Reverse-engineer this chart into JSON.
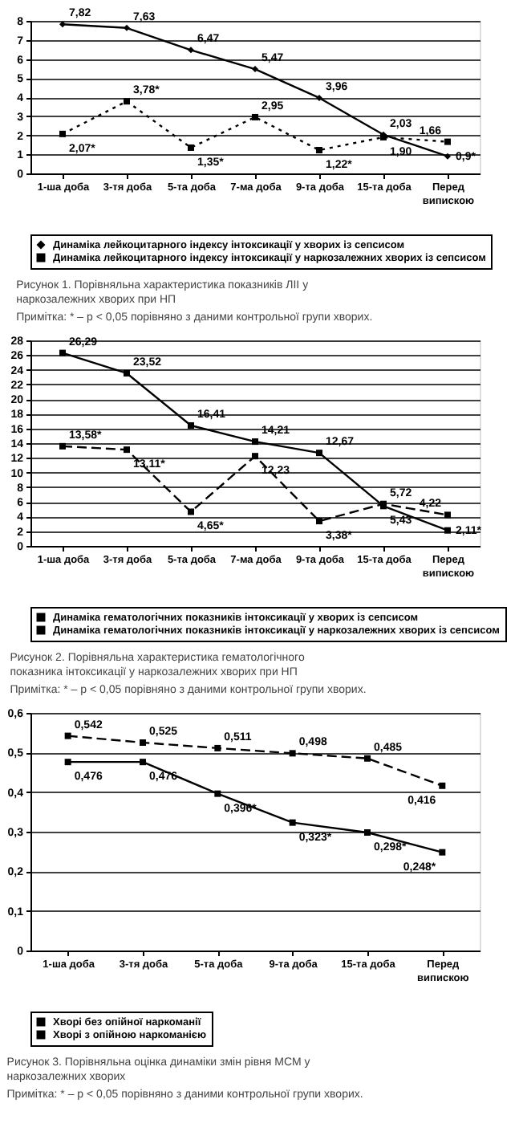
{
  "chart_data": [
    {
      "type": "line",
      "title": "Рисунок 1. Порівняльна характеристика показників ЛІІ у наркозалежних хворих при НП",
      "annotations": [
        "Примітка: * – p < 0,05 порівняно з даними контрольної групи хворих."
      ],
      "categories": [
        "1-ша доба",
        "3-тя доба",
        "5-та доба",
        "7-ма доба",
        "9-та доба",
        "15-та доба",
        "Перед випискою"
      ],
      "ylim": [
        0,
        8
      ],
      "yticks": [
        0,
        1,
        2,
        3,
        4,
        5,
        6,
        7,
        8
      ],
      "grid": "y",
      "legend": "bottom",
      "series": [
        {
          "name": "Динаміка лейкоцитарного індексу інтоксикації у хворих із сепсисом",
          "color": "#000000",
          "marker": "diamond",
          "line_style": "solid",
          "values": [
            7.82,
            7.63,
            6.47,
            5.47,
            3.96,
            2.03,
            0.9
          ],
          "value_labels": [
            "7,82",
            "7,63",
            "6,47",
            "5,47",
            "3,96",
            "2,03",
            "0,9*"
          ]
        },
        {
          "name": "Динаміка лейкоцитарного індексу інтоксикації у наркозалежних хворих із сепсисом",
          "color": "#000000",
          "marker": "square",
          "line_style": "dotted",
          "values": [
            2.07,
            3.78,
            1.35,
            2.95,
            1.22,
            1.9,
            1.66
          ],
          "value_labels": [
            "2,07*",
            "3,78*",
            "1,35*",
            "2,95",
            "1,22*",
            "1,90",
            "1,66"
          ]
        }
      ]
    },
    {
      "type": "line",
      "title": "Рисунок 2. Порівняльна характеристика гематологічного показника інтоксикації у наркозалежних хворих при НП",
      "annotations": [
        "Примітка: * – p < 0,05 порівняно з даними контрольної групи хворих."
      ],
      "categories": [
        "1-ша доба",
        "3-тя доба",
        "5-та доба",
        "7-ма доба",
        "9-та доба",
        "15-та доба",
        "Перед випискою"
      ],
      "ylim": [
        0,
        28
      ],
      "yticks": [
        0,
        2,
        4,
        6,
        8,
        10,
        12,
        14,
        16,
        18,
        20,
        22,
        24,
        26,
        28
      ],
      "grid": "y",
      "legend": "bottom",
      "series": [
        {
          "name": "Динаміка гематологічних показників інтоксикації у хворих із сепсисом",
          "color": "#000000",
          "marker": "square",
          "line_style": "solid",
          "values": [
            26.29,
            23.52,
            16.41,
            14.21,
            12.67,
            5.43,
            2.11
          ],
          "value_labels": [
            "26,29",
            "23,52",
            "16,41",
            "14,21",
            "12,67",
            "5,43",
            "2,11*"
          ]
        },
        {
          "name": "Динаміка гематологічних показників інтоксикації у наркозалежних хворих із сепсисом",
          "color": "#000000",
          "marker": "square",
          "line_style": "dashed",
          "values": [
            13.58,
            13.11,
            4.65,
            12.23,
            3.38,
            5.72,
            4.22
          ],
          "value_labels": [
            "13,58*",
            "13,11*",
            "4,65*",
            "12,23",
            "3,38*",
            "5,72",
            "4,22"
          ]
        }
      ]
    },
    {
      "type": "line",
      "title": "Рисунок 3. Порівняльна оцінка динаміки змін рівня МСМ у наркозалежних хворих",
      "annotations": [
        "Примітка: * – p < 0,05 порівняно з даними контрольної групи хворих."
      ],
      "categories": [
        "1-ша доба",
        "3-тя доба",
        "5-та доба",
        "9-та доба",
        "15-та доба",
        "Перед випискою"
      ],
      "ylim": [
        0,
        0.6
      ],
      "yticks": [
        0,
        {
          "value": 0.1,
          "label": "0,1"
        },
        {
          "value": 0.2,
          "label": "0,2"
        },
        {
          "value": 0.3,
          "label": "0,3"
        },
        {
          "value": 0.4,
          "label": "0,4"
        },
        {
          "value": 0.5,
          "label": "0,5"
        },
        {
          "value": 0.6,
          "label": "0,6"
        }
      ],
      "grid": "y",
      "legend": "bottom",
      "series": [
        {
          "name": "Хворі без опійної наркоманії",
          "color": "#000000",
          "marker": "square",
          "line_style": "solid",
          "values": [
            0.476,
            0.476,
            0.396,
            0.323,
            0.298,
            0.248
          ],
          "value_labels": [
            "0,476",
            "0,476",
            "0,396*",
            "0,323*",
            "0,298*",
            "0,248*"
          ]
        },
        {
          "name": "Хворі з опійною наркоманією",
          "color": "#000000",
          "marker": "square",
          "line_style": "dashed",
          "values": [
            0.542,
            0.525,
            0.511,
            0.498,
            0.485,
            0.416
          ],
          "value_labels": [
            "0,542",
            "0,525",
            "0,511",
            "0,498",
            "0,485",
            "0,416"
          ]
        }
      ]
    }
  ]
}
